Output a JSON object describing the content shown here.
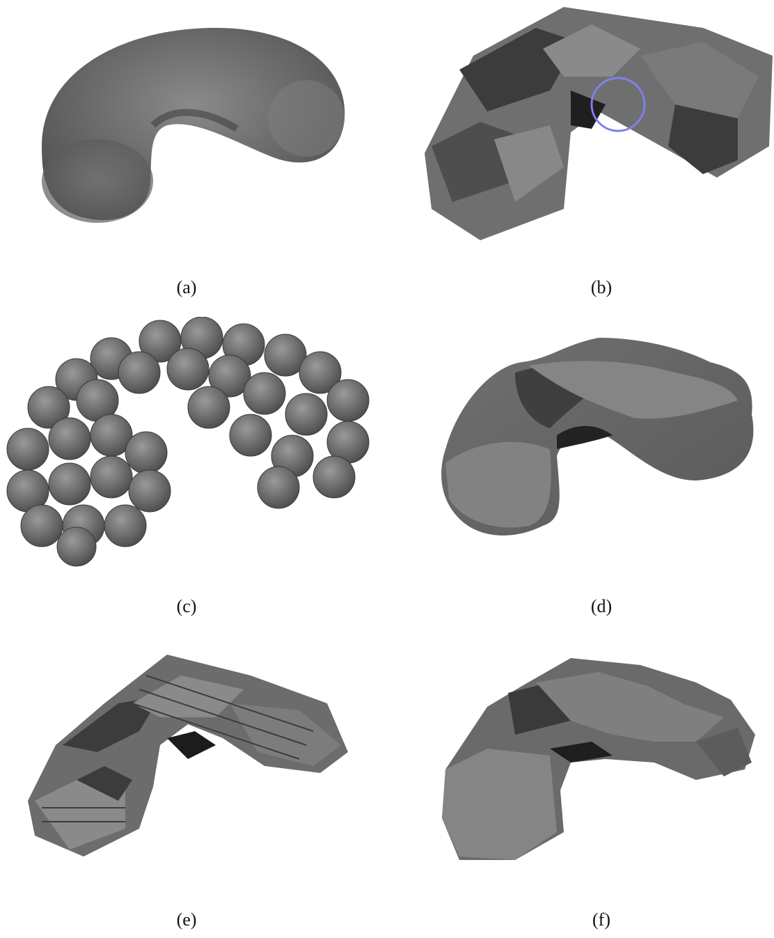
{
  "figure": {
    "captions": {
      "a": "(a)",
      "b": "(b)",
      "c": "(c)",
      "d": "(d)",
      "e": "(e)",
      "f": "(f)"
    },
    "colors": {
      "surface_light": "#8a8a8a",
      "surface_mid": "#6f6f6f",
      "surface_dark": "#3c3c3c",
      "highlight_circle": "#8080f0"
    }
  }
}
